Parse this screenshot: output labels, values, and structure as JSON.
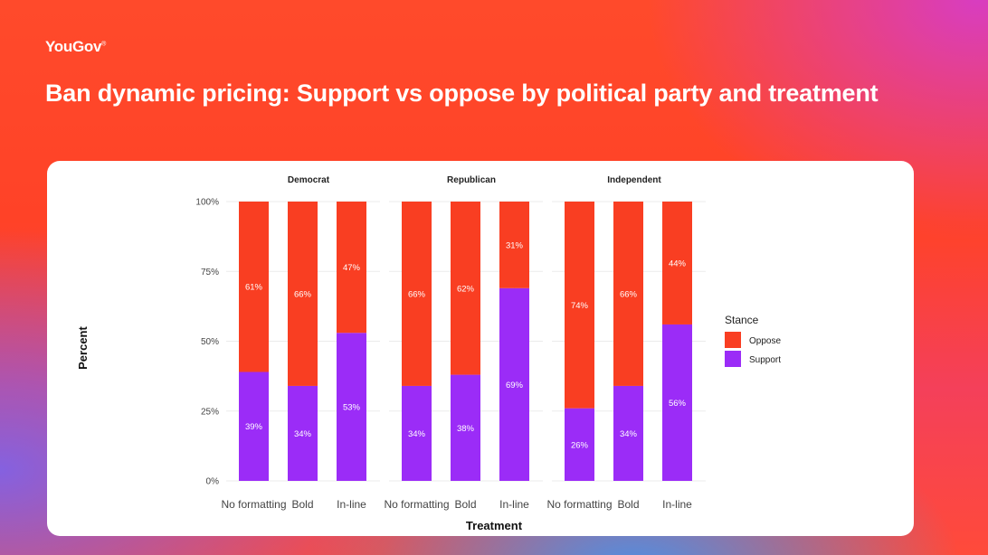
{
  "brand": {
    "name": "YouGov",
    "mark": "®"
  },
  "page": {
    "title": "Ban dynamic pricing: Support vs oppose by political party and treatment"
  },
  "colors": {
    "oppose": "#f93e22",
    "support": "#9b2cf7",
    "grid": "#ebebeb",
    "text": "#333333"
  },
  "chart_data": {
    "type": "bar",
    "stacked": true,
    "title": "",
    "xlabel": "Treatment",
    "ylabel": "Percent",
    "ylim": [
      0,
      100
    ],
    "yticks": [
      "0%",
      "25%",
      "50%",
      "75%",
      "100%"
    ],
    "legend": {
      "title": "Stance",
      "position": "right",
      "entries": [
        "Oppose",
        "Support"
      ]
    },
    "categories": [
      "No formatting",
      "Bold",
      "In-line"
    ],
    "facets": [
      {
        "name": "Democrat",
        "series": [
          {
            "name": "Support",
            "values": [
              39,
              34,
              53
            ],
            "labels": [
              "39%",
              "34%",
              "53%"
            ]
          },
          {
            "name": "Oppose",
            "values": [
              61,
              66,
              47
            ],
            "labels": [
              "61%",
              "66%",
              "47%"
            ]
          }
        ]
      },
      {
        "name": "Republican",
        "series": [
          {
            "name": "Support",
            "values": [
              34,
              38,
              69
            ],
            "labels": [
              "34%",
              "38%",
              "69%"
            ]
          },
          {
            "name": "Oppose",
            "values": [
              66,
              62,
              31
            ],
            "labels": [
              "66%",
              "62%",
              "31%"
            ]
          }
        ]
      },
      {
        "name": "Independent",
        "series": [
          {
            "name": "Support",
            "values": [
              26,
              34,
              56
            ],
            "labels": [
              "26%",
              "34%",
              "56%"
            ]
          },
          {
            "name": "Oppose",
            "values": [
              74,
              66,
              44
            ],
            "labels": [
              "74%",
              "66%",
              "44%"
            ]
          }
        ]
      }
    ]
  }
}
